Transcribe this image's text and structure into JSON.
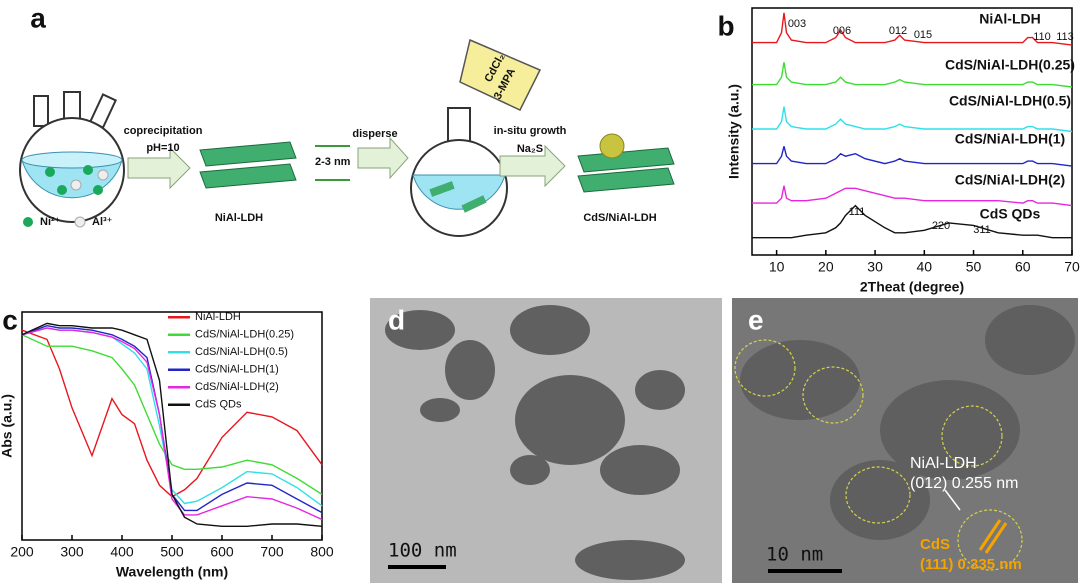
{
  "panel_labels": [
    "a",
    "b",
    "c",
    "d",
    "e"
  ],
  "scheme": {
    "step1": "coprecipitation",
    "step1_condition": "pH=10",
    "spacing": "2-3 nm",
    "product1": "NiAl-LDH",
    "step2": "disperse",
    "reagent1": "CdCl₂",
    "reagent2": "3-MPA",
    "step3": "in-situ growth",
    "step3_condition": "Na₂S",
    "product2": "CdS/NiAl-LDH",
    "ion_ni": "Ni²⁺",
    "ion_al": "Al³⁺"
  },
  "chart_data": [
    {
      "type": "line",
      "xlabel": "2Theat (degree)",
      "ylabel": "Intensity (a.u.)",
      "xlim": [
        5,
        70
      ],
      "xticks": [
        10,
        20,
        30,
        40,
        50,
        60,
        70
      ],
      "ylim": [
        0,
        100
      ],
      "peak_labels": [
        "003",
        "006",
        "012",
        "015",
        "110",
        "113",
        "111",
        "220",
        "311"
      ],
      "x": [
        5,
        8,
        10,
        11,
        11.5,
        12,
        13,
        16,
        20,
        22,
        23,
        24,
        26,
        28,
        32,
        34,
        35,
        36,
        40,
        45,
        50,
        55,
        60,
        61,
        62,
        63,
        66,
        70
      ],
      "series": [
        {
          "name": "NiAl-LDH",
          "color": "#e8171e",
          "values": [
            86,
            86,
            86,
            90,
            98,
            90,
            87,
            86,
            86,
            88,
            91,
            88,
            86,
            86,
            86,
            87,
            89,
            87,
            86,
            86,
            86,
            86,
            86,
            88,
            88,
            86,
            86,
            85
          ]
        },
        {
          "name": "CdS/NiAl-LDH(0.25)",
          "color": "#3fdc35",
          "values": [
            69,
            69,
            69,
            72,
            78,
            72,
            70,
            69,
            69,
            70,
            72,
            70,
            69,
            69,
            69,
            70,
            71,
            70,
            69,
            69,
            69,
            69,
            69,
            70,
            70,
            69,
            69,
            68
          ]
        },
        {
          "name": "CdS/NiAl-LDH(0.5)",
          "color": "#2fe0ea",
          "values": [
            51,
            51,
            51,
            54,
            60,
            54,
            52,
            51,
            51,
            53,
            55,
            53,
            52,
            51,
            51,
            52,
            53,
            52,
            51,
            51,
            51,
            51,
            51,
            52,
            52,
            51,
            51,
            50
          ]
        },
        {
          "name": "CdS/NiAl-LDH(1)",
          "color": "#2226c8",
          "values": [
            37,
            37,
            37,
            40,
            44,
            40,
            38,
            37,
            37,
            39,
            41,
            40,
            41,
            39,
            37,
            38,
            39,
            38,
            37,
            37,
            37,
            37,
            37,
            38,
            38,
            37,
            37,
            36
          ]
        },
        {
          "name": "CdS/NiAl-LDH(2)",
          "color": "#e626e0",
          "values": [
            21,
            21,
            21,
            23,
            28,
            23,
            22,
            22,
            23,
            25,
            26,
            27,
            27,
            26,
            24,
            23,
            23,
            23,
            22,
            22,
            22,
            22,
            21,
            22,
            22,
            21,
            21,
            20
          ]
        },
        {
          "name": "CdS QDs",
          "color": "#111111",
          "values": [
            7,
            7,
            7,
            7,
            7,
            7,
            7,
            8,
            9,
            11,
            13,
            16,
            20,
            16,
            11,
            9,
            9,
            9,
            10,
            13,
            12,
            9,
            8,
            8,
            8,
            8,
            7,
            7
          ]
        }
      ]
    },
    {
      "type": "line",
      "xlabel": "Wavelength (nm)",
      "ylabel": "Abs (a.u.)",
      "xlim": [
        200,
        800
      ],
      "xticks": [
        200,
        300,
        400,
        500,
        600,
        700,
        800
      ],
      "ylim": [
        0,
        1
      ],
      "legend": "top-right",
      "x": [
        200,
        250,
        275,
        300,
        340,
        380,
        400,
        425,
        450,
        475,
        500,
        525,
        550,
        600,
        650,
        700,
        750,
        800
      ],
      "series": [
        {
          "name": "NiAl-LDH",
          "color": "#e8171e",
          "values": [
            0.92,
            0.88,
            0.75,
            0.58,
            0.37,
            0.62,
            0.55,
            0.51,
            0.35,
            0.24,
            0.19,
            0.22,
            0.27,
            0.45,
            0.56,
            0.54,
            0.48,
            0.33
          ]
        },
        {
          "name": "CdS/NiAl-LDH(0.25)",
          "color": "#3fdc35",
          "values": [
            0.9,
            0.85,
            0.85,
            0.85,
            0.83,
            0.8,
            0.75,
            0.68,
            0.55,
            0.42,
            0.33,
            0.31,
            0.31,
            0.32,
            0.35,
            0.33,
            0.27,
            0.2
          ]
        },
        {
          "name": "CdS/NiAl-LDH(0.5)",
          "color": "#2fe0ea",
          "values": [
            0.9,
            0.93,
            0.92,
            0.92,
            0.91,
            0.89,
            0.86,
            0.82,
            0.75,
            0.5,
            0.22,
            0.16,
            0.17,
            0.23,
            0.3,
            0.29,
            0.23,
            0.15
          ]
        },
        {
          "name": "CdS/NiAl-LDH(1)",
          "color": "#2226c8",
          "values": [
            0.9,
            0.94,
            0.93,
            0.93,
            0.92,
            0.9,
            0.88,
            0.85,
            0.8,
            0.55,
            0.2,
            0.13,
            0.13,
            0.2,
            0.25,
            0.24,
            0.18,
            0.12
          ]
        },
        {
          "name": "CdS/NiAl-LDH(2)",
          "color": "#e626e0",
          "values": [
            0.9,
            0.93,
            0.92,
            0.92,
            0.91,
            0.89,
            0.87,
            0.84,
            0.78,
            0.55,
            0.18,
            0.11,
            0.11,
            0.15,
            0.19,
            0.18,
            0.14,
            0.09
          ]
        },
        {
          "name": "CdS QDs",
          "color": "#111111",
          "values": [
            0.9,
            0.95,
            0.94,
            0.94,
            0.93,
            0.93,
            0.92,
            0.9,
            0.88,
            0.7,
            0.2,
            0.1,
            0.07,
            0.06,
            0.06,
            0.07,
            0.07,
            0.06
          ]
        }
      ]
    }
  ],
  "tem": {
    "d": {
      "scale_bar": "100 nm"
    },
    "e": {
      "ldh_label": "NiAl-LDH",
      "ldh_spacing": "(012) 0.255 nm",
      "cds_label": "CdS",
      "cds_spacing": "(111) 0.335 nm",
      "scale_bar": "10 nm"
    }
  }
}
